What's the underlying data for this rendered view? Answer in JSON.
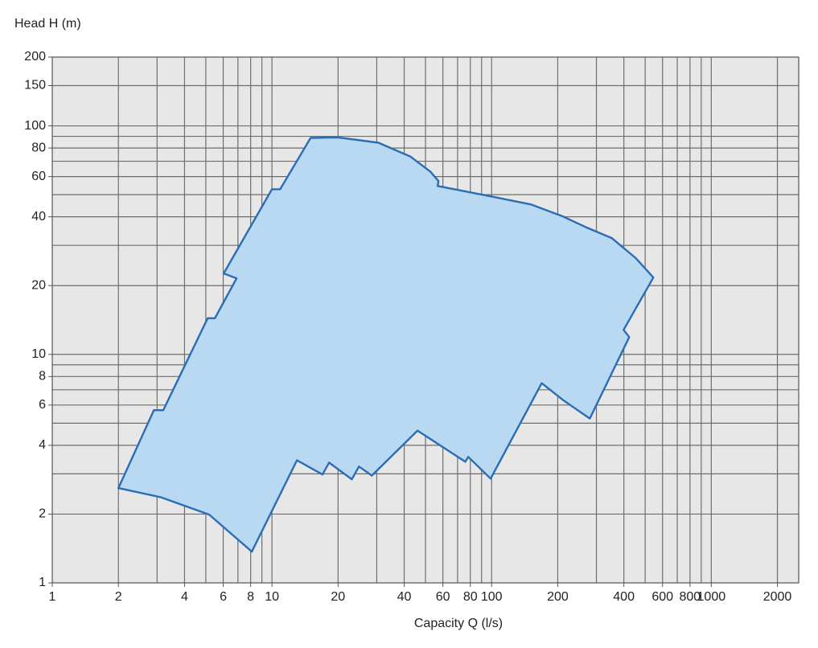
{
  "chart_data": {
    "type": "area",
    "y_axis_label": "Head H (m)",
    "x_axis_label": "Capacity Q (l/s)",
    "xscale": "log",
    "yscale": "log",
    "xlim": [
      1,
      2500
    ],
    "ylim": [
      1,
      200
    ],
    "xticks": [
      1,
      2,
      4,
      6,
      8,
      10,
      20,
      40,
      60,
      80,
      100,
      200,
      400,
      600,
      800,
      1000,
      2000
    ],
    "yticks": [
      1,
      2,
      4,
      6,
      8,
      10,
      20,
      40,
      60,
      80,
      100,
      150,
      200
    ],
    "xgrid": [
      2,
      3,
      4,
      5,
      6,
      7,
      8,
      9,
      10,
      20,
      30,
      40,
      50,
      60,
      70,
      80,
      90,
      100,
      200,
      300,
      400,
      500,
      600,
      700,
      800,
      900,
      1000,
      2000
    ],
    "ygrid": [
      2,
      3,
      4,
      5,
      6,
      7,
      8,
      9,
      10,
      20,
      30,
      40,
      50,
      60,
      70,
      80,
      90,
      100,
      150
    ],
    "grid": true,
    "series": [
      {
        "color": "#2a6db5",
        "fill": "#b9d9f2",
        "x": [
          2,
          2.9,
          3.2,
          5.1,
          5.5,
          6.9,
          6.03,
          10,
          10.9,
          15,
          20,
          30.5,
          42.6,
          52.7,
          57.3,
          56.8,
          100,
          151,
          212,
          273,
          352,
          453,
          545,
          399,
          423,
          280,
          212,
          169,
          99,
          78.3,
          75.8,
          46,
          28.5,
          24.9,
          23.1,
          18.2,
          17,
          13,
          8.1,
          5.18,
          3.12
        ],
        "values": [
          2.6,
          5.7,
          5.7,
          14.4,
          14.4,
          21.5,
          22.6,
          52.8,
          52.8,
          88.6,
          89,
          84.4,
          73.5,
          63,
          57.3,
          54.6,
          49.1,
          45.3,
          40.1,
          35.8,
          32.3,
          26.4,
          21.7,
          12.8,
          11.9,
          5.24,
          6.3,
          7.48,
          2.86,
          3.56,
          3.39,
          4.64,
          2.95,
          3.23,
          2.84,
          3.36,
          2.98,
          3.44,
          1.37,
          1.99,
          2.37
        ]
      }
    ]
  }
}
